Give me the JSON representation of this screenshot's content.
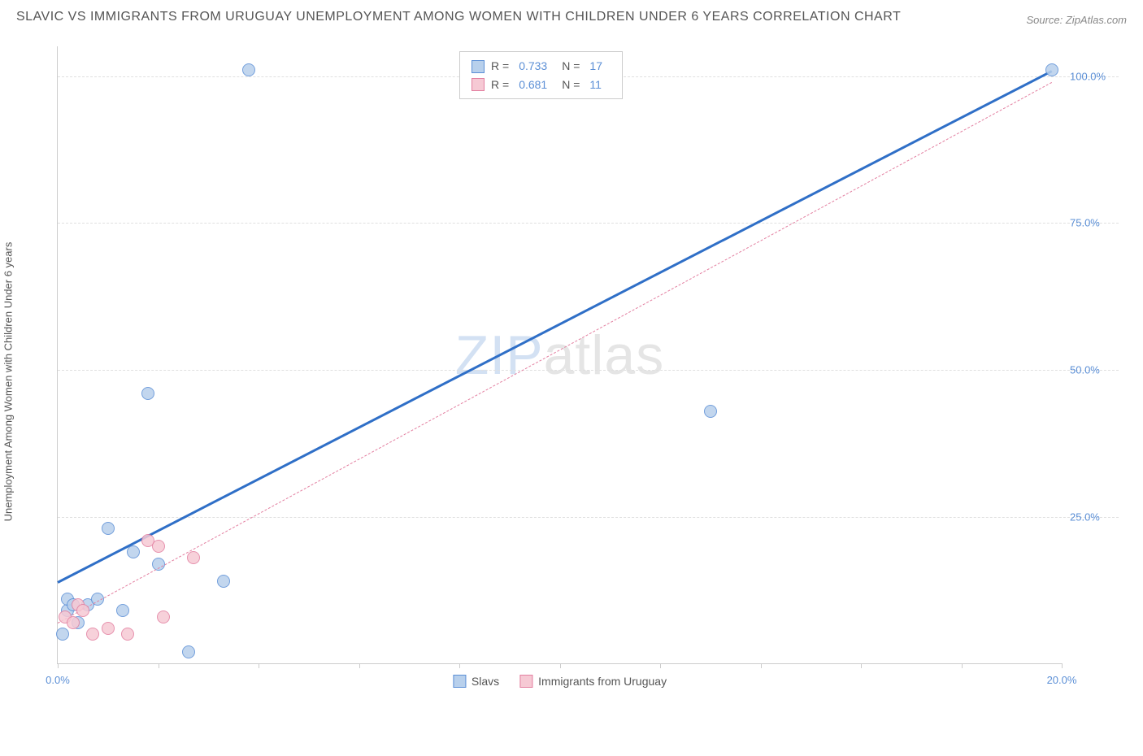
{
  "title": "SLAVIC VS IMMIGRANTS FROM URUGUAY UNEMPLOYMENT AMONG WOMEN WITH CHILDREN UNDER 6 YEARS CORRELATION CHART",
  "source": "Source: ZipAtlas.com",
  "y_axis_label": "Unemployment Among Women with Children Under 6 years",
  "watermark_a": "ZIP",
  "watermark_b": "atlas",
  "chart": {
    "type": "scatter",
    "xlim": [
      0,
      20
    ],
    "ylim": [
      0,
      105
    ],
    "x_ticks": [
      0,
      2,
      4,
      6,
      8,
      10,
      12,
      14,
      16,
      18,
      20
    ],
    "x_tick_labels": {
      "0": "0.0%",
      "20": "20.0%"
    },
    "y_ticks": [
      25,
      50,
      75,
      100
    ],
    "y_tick_labels": [
      "25.0%",
      "50.0%",
      "75.0%",
      "100.0%"
    ],
    "grid_color": "#e0e0e0",
    "axis_color": "#cccccc",
    "tick_label_color": "#5b8fd6",
    "background_color": "#ffffff",
    "marker_radius": 8,
    "marker_stroke_width": 1,
    "series": [
      {
        "name": "Slavs",
        "fill_color": "#b8d0ec",
        "stroke_color": "#5b8fd6",
        "trend_color": "#2f6fc7",
        "trend_width": 3,
        "trend_style": "solid",
        "R": "0.733",
        "N": "17",
        "trend": {
          "x1": 0,
          "y1": 14,
          "x2": 19.8,
          "y2": 101
        },
        "points": [
          {
            "x": 0.1,
            "y": 5
          },
          {
            "x": 0.2,
            "y": 9
          },
          {
            "x": 0.2,
            "y": 11
          },
          {
            "x": 0.3,
            "y": 10
          },
          {
            "x": 0.4,
            "y": 7
          },
          {
            "x": 0.6,
            "y": 10
          },
          {
            "x": 0.8,
            "y": 11
          },
          {
            "x": 1.0,
            "y": 23
          },
          {
            "x": 1.3,
            "y": 9
          },
          {
            "x": 1.5,
            "y": 19
          },
          {
            "x": 1.8,
            "y": 46
          },
          {
            "x": 2.0,
            "y": 17
          },
          {
            "x": 2.6,
            "y": 2
          },
          {
            "x": 3.3,
            "y": 14
          },
          {
            "x": 3.8,
            "y": 101
          },
          {
            "x": 13.0,
            "y": 43
          },
          {
            "x": 19.8,
            "y": 101
          }
        ]
      },
      {
        "name": "Immigrants from Uruguay",
        "fill_color": "#f6c9d4",
        "stroke_color": "#e37fa0",
        "trend_color": "#e37fa0",
        "trend_width": 1,
        "trend_style": "dashed",
        "R": "0.681",
        "N": "11",
        "trend": {
          "x1": 0,
          "y1": 7,
          "x2": 19.8,
          "y2": 99
        },
        "points": [
          {
            "x": 0.15,
            "y": 8
          },
          {
            "x": 0.3,
            "y": 7
          },
          {
            "x": 0.4,
            "y": 10
          },
          {
            "x": 0.5,
            "y": 9
          },
          {
            "x": 0.7,
            "y": 5
          },
          {
            "x": 1.0,
            "y": 6
          },
          {
            "x": 1.4,
            "y": 5
          },
          {
            "x": 1.8,
            "y": 21
          },
          {
            "x": 2.0,
            "y": 20
          },
          {
            "x": 2.1,
            "y": 8
          },
          {
            "x": 2.7,
            "y": 18
          }
        ]
      }
    ]
  },
  "legend_top": {
    "R_label": "R =",
    "N_label": "N ="
  },
  "bottom_legend": [
    "Slavs",
    "Immigrants from Uruguay"
  ]
}
